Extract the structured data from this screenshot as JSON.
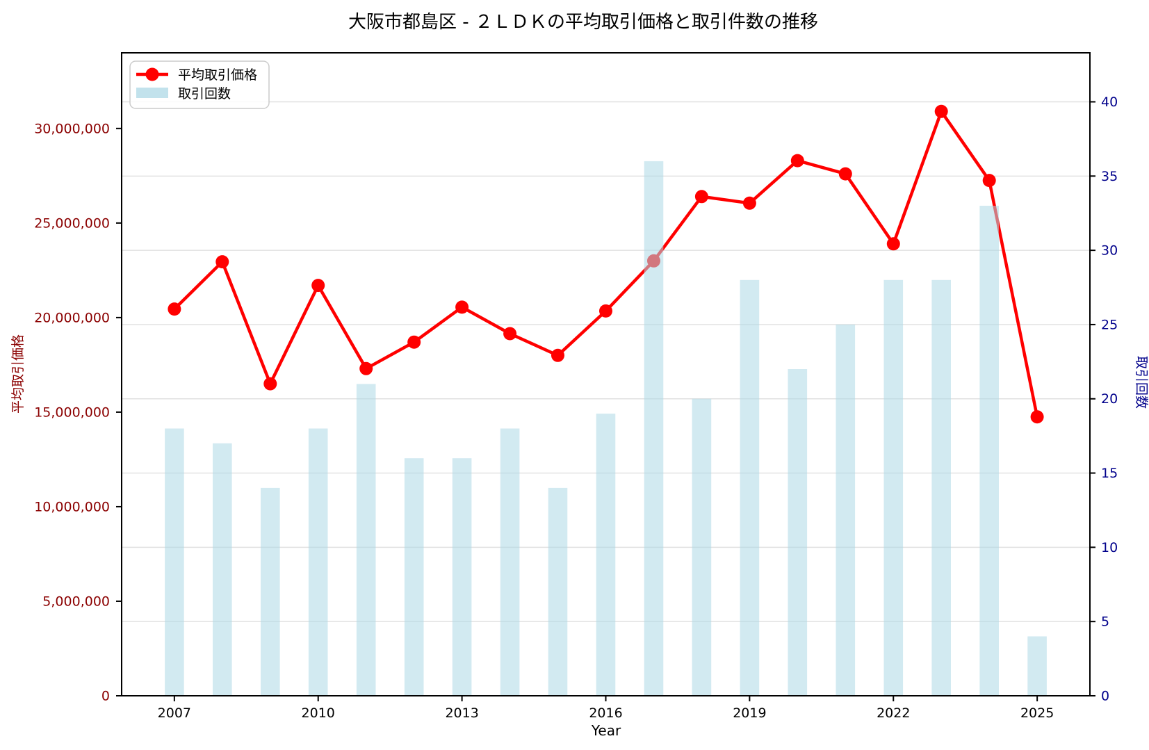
{
  "chart_data": {
    "type": "combo (line + bar, dual y-axis)",
    "title": "大阪市都島区 - ２ＬＤＫの平均取引価格と取引件数の推移",
    "xlabel": "Year",
    "ylabel_left": "平均取引価格",
    "ylabel_right": "取引回数",
    "x": [
      2007,
      2008,
      2009,
      2010,
      2011,
      2012,
      2013,
      2014,
      2015,
      2016,
      2017,
      2018,
      2019,
      2020,
      2021,
      2022,
      2023,
      2024,
      2025
    ],
    "x_ticks": [
      2007,
      2010,
      2013,
      2016,
      2019,
      2022,
      2025
    ],
    "xlim": [
      2005.9,
      2026.1
    ],
    "series": [
      {
        "name": "平均取引価格",
        "type": "line",
        "axis": "left",
        "color": "#ff0000",
        "values": [
          20450000,
          22950000,
          16500000,
          21700000,
          17300000,
          18700000,
          20550000,
          19150000,
          18000000,
          20350000,
          23000000,
          26400000,
          26050000,
          28300000,
          27600000,
          23900000,
          30900000,
          27250000,
          14750000
        ]
      },
      {
        "name": "取引回数",
        "type": "bar",
        "axis": "right",
        "color": "#add8e6",
        "opacity": 0.55,
        "values": [
          18,
          17,
          14,
          18,
          21,
          16,
          16,
          18,
          14,
          19,
          36,
          20,
          28,
          22,
          25,
          28,
          28,
          33,
          4
        ]
      }
    ],
    "left_axis": {
      "ticks": [
        0,
        5000000,
        10000000,
        15000000,
        20000000,
        25000000,
        30000000
      ],
      "tick_labels": [
        "0",
        "5,000,000",
        "10,000,000",
        "15,000,000",
        "20,000,000",
        "25,000,000",
        "30,000,000"
      ],
      "range": [
        0,
        34000000
      ],
      "color": "#8b0000"
    },
    "right_axis": {
      "ticks": [
        0,
        5,
        10,
        15,
        20,
        25,
        30,
        35,
        40
      ],
      "range": [
        0,
        43.3
      ],
      "color": "#00008b"
    },
    "grid": "horizontal, at right-axis ticks",
    "grid_color": "#e0e0e0",
    "legend_position": "upper-left",
    "background": "#ffffff"
  }
}
